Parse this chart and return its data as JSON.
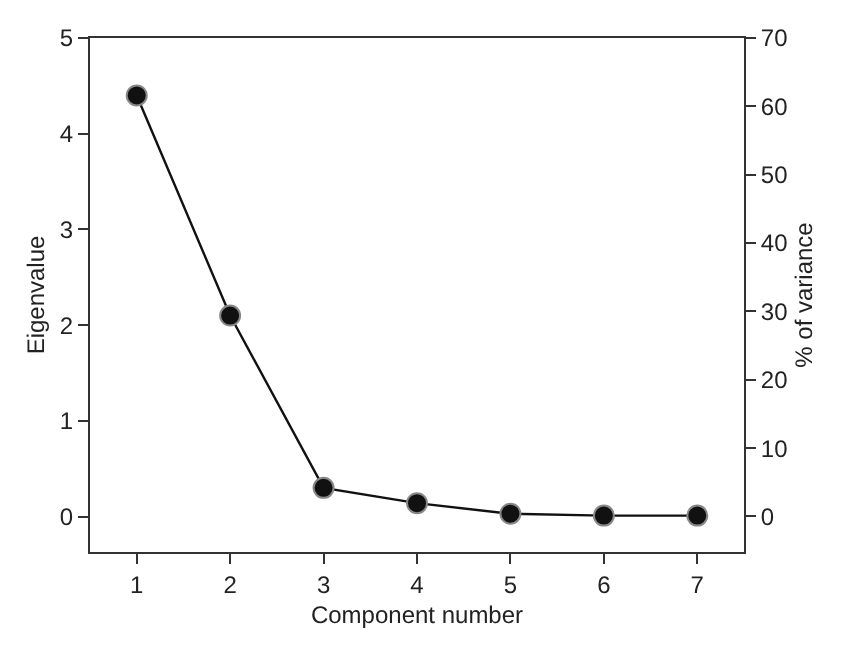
{
  "chart_data": {
    "type": "line",
    "xlabel": "Component number",
    "ylabel": "Eigenvalue",
    "y2label": "% of variance",
    "x": [
      1,
      2,
      3,
      4,
      5,
      6,
      7
    ],
    "series": [
      {
        "color": "#111111",
        "values": [
          4.4,
          2.1,
          0.3,
          0.14,
          0.03,
          0.01,
          0.01
        ]
      }
    ],
    "xlim": [
      0.5,
      7.5
    ],
    "xticks": [
      1,
      2,
      3,
      4,
      5,
      6,
      7
    ],
    "ylim": [
      -0.37,
      5
    ],
    "yticks": [
      0,
      1,
      2,
      3,
      4,
      5
    ],
    "y2lim": [
      -5.2,
      70
    ],
    "y2ticks": [
      0,
      10,
      20,
      30,
      40,
      50,
      60,
      70
    ],
    "marker": "circle",
    "line_style": "solid"
  }
}
